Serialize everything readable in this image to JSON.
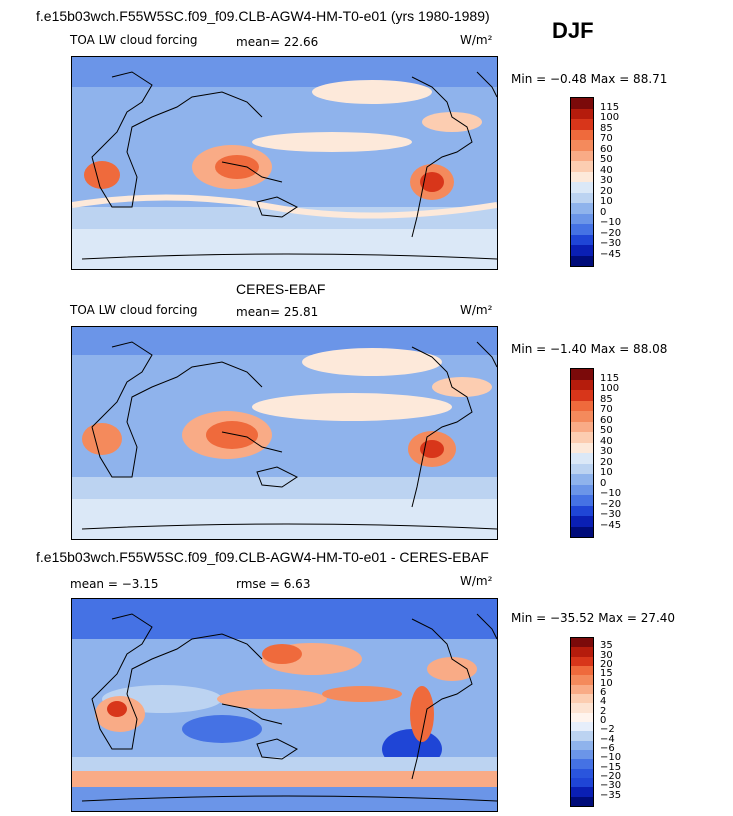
{
  "case_title": "f.e15b03wch.F55W5SC.f09_f09.CLB-AGW4-HM-T0-e01 (yrs 1980-1989)",
  "season": "DJF",
  "panels": [
    {
      "heading": "",
      "field": "TOA LW cloud forcing",
      "stat_text": "mean=  22.66",
      "units": "W/m²",
      "minmax": "Min =  −0.48 Max =  88.71",
      "colorbar_labels": [
        "115",
        "100",
        "85",
        "70",
        "60",
        "50",
        "40",
        "30",
        "20",
        "10",
        "0",
        "−10",
        "−20",
        "−30",
        "−45"
      ],
      "colors": [
        "#7b0a0a",
        "#b51c0c",
        "#d8361a",
        "#ef6a3c",
        "#f48a5c",
        "#f9ab86",
        "#fccdb1",
        "#fde9da",
        "#dbe8f7",
        "#bcd3f1",
        "#8fb3ec",
        "#6b95e8",
        "#4572e4",
        "#1f45d6",
        "#0a1fb4",
        "#000c7a"
      ]
    },
    {
      "heading": "CERES-EBAF",
      "field": "TOA LW cloud forcing",
      "stat_text": "mean=  25.81",
      "units": "W/m²",
      "minmax": "Min =  −1.40 Max =  88.08",
      "colorbar_labels": [
        "115",
        "100",
        "85",
        "70",
        "60",
        "50",
        "40",
        "30",
        "20",
        "10",
        "0",
        "−10",
        "−20",
        "−30",
        "−45"
      ],
      "colors": [
        "#7b0a0a",
        "#b51c0c",
        "#d8361a",
        "#ef6a3c",
        "#f48a5c",
        "#f9ab86",
        "#fccdb1",
        "#fde9da",
        "#dbe8f7",
        "#bcd3f1",
        "#8fb3ec",
        "#6b95e8",
        "#4572e4",
        "#1f45d6",
        "#0a1fb4",
        "#000c7a"
      ]
    },
    {
      "heading": "f.e15b03wch.F55W5SC.f09_f09.CLB-AGW4-HM-T0-e01 - CERES-EBAF",
      "field": "mean =  −3.15",
      "stat_text": "rmse =   6.63",
      "units": "W/m²",
      "minmax": "Min = −35.52 Max =  27.40",
      "colorbar_labels": [
        "35",
        "30",
        "20",
        "15",
        "10",
        "6",
        "4",
        "2",
        "0",
        "−2",
        "−4",
        "−6",
        "−10",
        "−15",
        "−20",
        "−30",
        "−35"
      ],
      "colors": [
        "#7b0a0a",
        "#b51c0c",
        "#d8361a",
        "#ef6a3c",
        "#f48a5c",
        "#f9ab86",
        "#fccdb1",
        "#fde3d2",
        "#fff4ee",
        "#e6eefb",
        "#bcd3f1",
        "#8fb3ec",
        "#6b95e8",
        "#4572e4",
        "#2a55dd",
        "#1f45d6",
        "#0a1fb4",
        "#000c7a"
      ]
    }
  ]
}
